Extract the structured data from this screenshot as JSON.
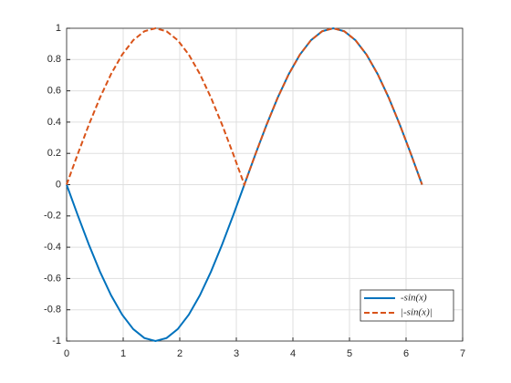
{
  "chart_data": {
    "type": "line",
    "x": [
      0,
      0.1963,
      0.3927,
      0.589,
      0.7854,
      0.9817,
      1.1781,
      1.3744,
      1.5708,
      1.7671,
      1.9635,
      2.1598,
      2.3562,
      2.5525,
      2.7489,
      2.9452,
      3.1416,
      3.3379,
      3.5343,
      3.7306,
      3.927,
      4.1233,
      4.3197,
      4.516,
      4.7124,
      4.9087,
      5.1051,
      5.3014,
      5.4978,
      5.6941,
      5.8905,
      6.0868,
      6.2832
    ],
    "series": [
      {
        "name": "-sin(x)",
        "color": "#0072bd",
        "linestyle": "solid",
        "values": [
          0,
          -0.1951,
          -0.3827,
          -0.5556,
          -0.7071,
          -0.8315,
          -0.9239,
          -0.9808,
          -1,
          -0.9808,
          -0.9239,
          -0.8315,
          -0.7071,
          -0.5556,
          -0.3827,
          -0.1951,
          0,
          0.1951,
          0.3827,
          0.5556,
          0.7071,
          0.8315,
          0.9239,
          0.9808,
          1,
          0.9808,
          0.9239,
          0.8315,
          0.7071,
          0.5556,
          0.3827,
          0.1951,
          0
        ]
      },
      {
        "name": "|-sin(x)|",
        "color": "#d95319",
        "linestyle": "dashed",
        "values": [
          0,
          0.1951,
          0.3827,
          0.5556,
          0.7071,
          0.8315,
          0.9239,
          0.9808,
          1,
          0.9808,
          0.9239,
          0.8315,
          0.7071,
          0.5556,
          0.3827,
          0.1951,
          0,
          0.1951,
          0.3827,
          0.5556,
          0.7071,
          0.8315,
          0.9239,
          0.9808,
          1,
          0.9808,
          0.9239,
          0.8315,
          0.7071,
          0.5556,
          0.3827,
          0.1951,
          0
        ]
      }
    ],
    "xlim": [
      0,
      7
    ],
    "xticks": [
      0,
      1,
      2,
      3,
      4,
      5,
      6,
      7
    ],
    "ylim": [
      -1,
      1
    ],
    "yticks": [
      -1,
      -0.8,
      -0.6,
      -0.4,
      -0.2,
      0,
      0.2,
      0.4,
      0.6,
      0.8,
      1
    ],
    "grid": true,
    "legend": "southeast"
  }
}
